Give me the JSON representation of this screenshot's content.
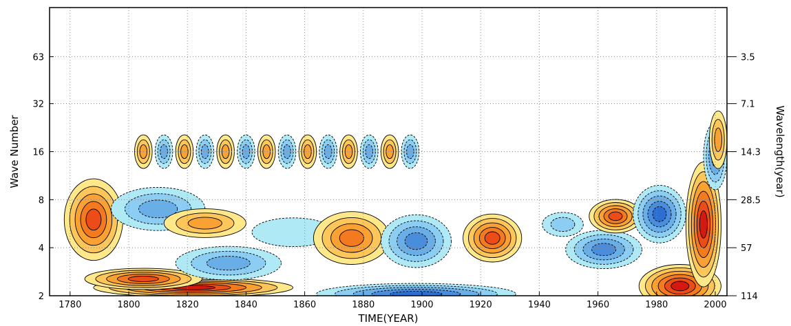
{
  "chart_data": {
    "type": "heatmap",
    "subtype": "wavelet filled contour",
    "title": "",
    "xlabel": "TIME(YEAR)",
    "ylabel": "Wave Number",
    "y2label": "Wavelength(year)",
    "x_ticks": [
      1780,
      1800,
      1820,
      1840,
      1860,
      1880,
      1900,
      1920,
      1940,
      1960,
      1980,
      2000
    ],
    "xlim": [
      1773,
      2004
    ],
    "y_scale": "log2",
    "y_ticks": [
      2,
      4,
      8,
      16,
      32,
      63
    ],
    "ylim": [
      2,
      128
    ],
    "y2_ticks": [
      {
        "wavenumber": 2,
        "label": "114"
      },
      {
        "wavenumber": 4,
        "label": "57"
      },
      {
        "wavenumber": 8,
        "label": "28.5"
      },
      {
        "wavenumber": 16,
        "label": "14.3"
      },
      {
        "wavenumber": 32,
        "label": "7.1"
      },
      {
        "wavenumber": 63,
        "label": "3.5"
      }
    ],
    "grid": true,
    "legend": "none",
    "colors": {
      "positive": [
        "#ffe88a",
        "#fcc65a",
        "#f9a233",
        "#f47a1f",
        "#ec4c18",
        "#d41a10"
      ],
      "negative": [
        "#aee9f5",
        "#8ccdf3",
        "#6aaee8",
        "#4a8ddc",
        "#2c6fd0",
        "#1957c4"
      ],
      "contour": "#000000",
      "grid": "#888888"
    },
    "features": [
      {
        "sign": "pos",
        "year": 1822,
        "wavenumber": 2.25,
        "width_years": 34,
        "width_octaves": 0.2,
        "level": 6
      },
      {
        "sign": "pos",
        "year": 1805,
        "wavenumber": 2.55,
        "width_years": 20,
        "width_octaves": 0.22,
        "level": 5
      },
      {
        "sign": "pos",
        "year": 1788,
        "wavenumber": 6.0,
        "width_years": 10,
        "width_octaves": 0.85,
        "level": 5
      },
      {
        "sign": "neg",
        "year": 1810,
        "wavenumber": 7.0,
        "width_years": 16,
        "width_octaves": 0.45,
        "level": 3
      },
      {
        "sign": "pos",
        "year": 1826,
        "wavenumber": 5.7,
        "width_years": 14,
        "width_octaves": 0.3,
        "level": 3
      },
      {
        "sign": "neg",
        "year": 1834,
        "wavenumber": 3.2,
        "width_years": 18,
        "width_octaves": 0.35,
        "level": 3
      },
      {
        "sign": "neg",
        "year": 1856,
        "wavenumber": 5.0,
        "width_years": 14,
        "width_octaves": 0.3,
        "level": 1
      },
      {
        "sign": "pos",
        "year": 1876,
        "wavenumber": 4.6,
        "width_years": 13,
        "width_octaves": 0.55,
        "level": 4
      },
      {
        "sign": "neg",
        "year": 1898,
        "wavenumber": 4.4,
        "width_years": 12,
        "width_octaves": 0.55,
        "level": 4
      },
      {
        "sign": "neg",
        "year": 1898,
        "wavenumber": 2.05,
        "width_years": 34,
        "width_octaves": 0.22,
        "level": 5
      },
      {
        "sign": "pos",
        "year": 1924,
        "wavenumber": 4.6,
        "width_years": 10,
        "width_octaves": 0.5,
        "level": 5
      },
      {
        "sign": "neg",
        "year": 1948,
        "wavenumber": 5.6,
        "width_years": 7,
        "width_octaves": 0.25,
        "level": 2
      },
      {
        "sign": "neg",
        "year": 1962,
        "wavenumber": 3.9,
        "width_years": 13,
        "width_octaves": 0.4,
        "level": 4
      },
      {
        "sign": "pos",
        "year": 1966,
        "wavenumber": 6.3,
        "width_years": 9,
        "width_octaves": 0.35,
        "level": 5
      },
      {
        "sign": "neg",
        "year": 1981,
        "wavenumber": 6.5,
        "width_years": 9,
        "width_octaves": 0.6,
        "level": 5
      },
      {
        "sign": "pos",
        "year": 1988,
        "wavenumber": 2.3,
        "width_years": 14,
        "width_octaves": 0.45,
        "level": 6
      },
      {
        "sign": "pos",
        "year": 1996,
        "wavenumber": 5.6,
        "width_years": 6,
        "width_octaves": 1.3,
        "level": 6
      },
      {
        "sign": "neg",
        "year": 2000,
        "wavenumber": 15.0,
        "width_years": 4,
        "width_octaves": 0.7,
        "level": 4
      },
      {
        "sign": "pos",
        "year": 2001,
        "wavenumber": 19.0,
        "width_years": 3,
        "width_octaves": 0.6,
        "level": 3
      }
    ],
    "oscillation_band": {
      "wavenumber": 16,
      "start_year": 1805,
      "end_year": 1900,
      "period_years": 14
    }
  }
}
